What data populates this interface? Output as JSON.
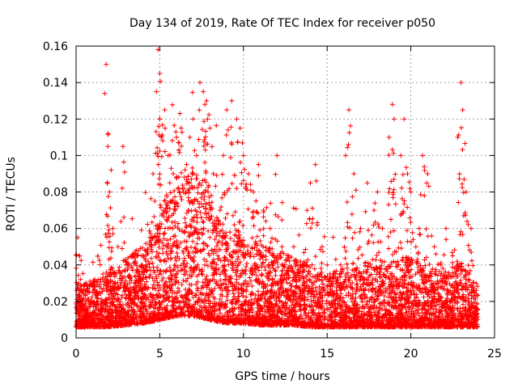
{
  "chart_data": {
    "type": "scatter",
    "title": "Day 134 of 2019, Rate Of TEC Index for receiver p050",
    "xlabel": "GPS time / hours",
    "ylabel": "ROTI / TECUs",
    "xlim": [
      0,
      25
    ],
    "ylim": [
      0,
      0.16
    ],
    "xticks": [
      0,
      5,
      10,
      15,
      20,
      25
    ],
    "xtick_labels": [
      "0",
      "5",
      "10",
      "15",
      "20",
      "25"
    ],
    "yticks": [
      0,
      0.02,
      0.04,
      0.06,
      0.08,
      0.1,
      0.12,
      0.14,
      0.16
    ],
    "ytick_labels": [
      "0",
      "0.02",
      "0.04",
      "0.06",
      "0.08",
      "0.1",
      "0.12",
      "0.14",
      "0.16"
    ],
    "grid": true,
    "marker": "+",
    "series": [
      {
        "name": "ROTI",
        "color": "#ff0000",
        "x": [
          0.1,
          0.15,
          0.2,
          0.3,
          0.5,
          0.8,
          1.0,
          1.3,
          1.6,
          1.8,
          1.9,
          2.0,
          2.1,
          2.2,
          2.3,
          2.5,
          2.8,
          3.0,
          3.3,
          3.5,
          3.8,
          4.0,
          4.2,
          4.4,
          4.6,
          4.8,
          4.9,
          5.0,
          5.0,
          5.1,
          5.3,
          5.5,
          5.6,
          5.8,
          6.0,
          6.2,
          6.4,
          6.6,
          6.8,
          7.0,
          7.2,
          7.4,
          7.6,
          7.7,
          7.8,
          8.0,
          8.2,
          8.4,
          8.6,
          8.8,
          9.0,
          9.3,
          9.6,
          9.8,
          10.0,
          10.3,
          10.6,
          10.9,
          11.2,
          11.6,
          12.0,
          12.3,
          12.7,
          13.0,
          13.4,
          13.8,
          14.0,
          14.3,
          14.7,
          15.0,
          15.4,
          15.8,
          16.1,
          16.3,
          16.6,
          17.0,
          17.4,
          17.8,
          18.0,
          18.3,
          18.7,
          18.9,
          19.0,
          19.4,
          19.6,
          19.8,
          20.0,
          20.3,
          20.5,
          20.7,
          21.0,
          21.4,
          21.8,
          22.1,
          22.5,
          22.8,
          23.0,
          23.1,
          23.3,
          23.6,
          23.9
        ],
        "y": [
          0.055,
          0.03,
          0.045,
          0.02,
          0.015,
          0.012,
          0.025,
          0.02,
          0.035,
          0.15,
          0.105,
          0.08,
          0.092,
          0.06,
          0.03,
          0.05,
          0.105,
          0.04,
          0.025,
          0.03,
          0.035,
          0.045,
          0.04,
          0.055,
          0.09,
          0.135,
          0.158,
          0.145,
          0.12,
          0.11,
          0.125,
          0.1,
          0.085,
          0.09,
          0.11,
          0.123,
          0.08,
          0.095,
          0.11,
          0.12,
          0.1,
          0.14,
          0.135,
          0.128,
          0.13,
          0.115,
          0.09,
          0.06,
          0.07,
          0.1,
          0.125,
          0.13,
          0.12,
          0.115,
          0.1,
          0.09,
          0.08,
          0.095,
          0.07,
          0.06,
          0.1,
          0.05,
          0.045,
          0.05,
          0.042,
          0.07,
          0.085,
          0.095,
          0.05,
          0.04,
          0.035,
          0.04,
          0.1,
          0.125,
          0.09,
          0.06,
          0.085,
          0.07,
          0.08,
          0.06,
          0.11,
          0.128,
          0.12,
          0.1,
          0.12,
          0.09,
          0.08,
          0.05,
          0.06,
          0.1,
          0.09,
          0.05,
          0.04,
          0.06,
          0.045,
          0.11,
          0.14,
          0.125,
          0.08,
          0.06,
          0.03
        ]
      }
    ],
    "dense_band": {
      "description": "baseline cloud of points",
      "x": [
        0,
        1,
        2,
        3,
        4,
        5,
        6,
        7,
        8,
        9,
        10,
        11,
        12,
        13,
        14,
        15,
        16,
        17,
        18,
        19,
        20,
        21,
        22,
        23,
        24
      ],
      "y_low": [
        0.006,
        0.006,
        0.006,
        0.007,
        0.008,
        0.01,
        0.012,
        0.012,
        0.01,
        0.008,
        0.008,
        0.007,
        0.007,
        0.007,
        0.006,
        0.006,
        0.006,
        0.006,
        0.006,
        0.006,
        0.006,
        0.006,
        0.006,
        0.006,
        0.006
      ],
      "y_high": [
        0.02,
        0.022,
        0.025,
        0.03,
        0.035,
        0.045,
        0.06,
        0.065,
        0.05,
        0.04,
        0.038,
        0.035,
        0.033,
        0.03,
        0.028,
        0.025,
        0.025,
        0.027,
        0.028,
        0.03,
        0.03,
        0.025,
        0.025,
        0.028,
        0.02
      ]
    }
  }
}
